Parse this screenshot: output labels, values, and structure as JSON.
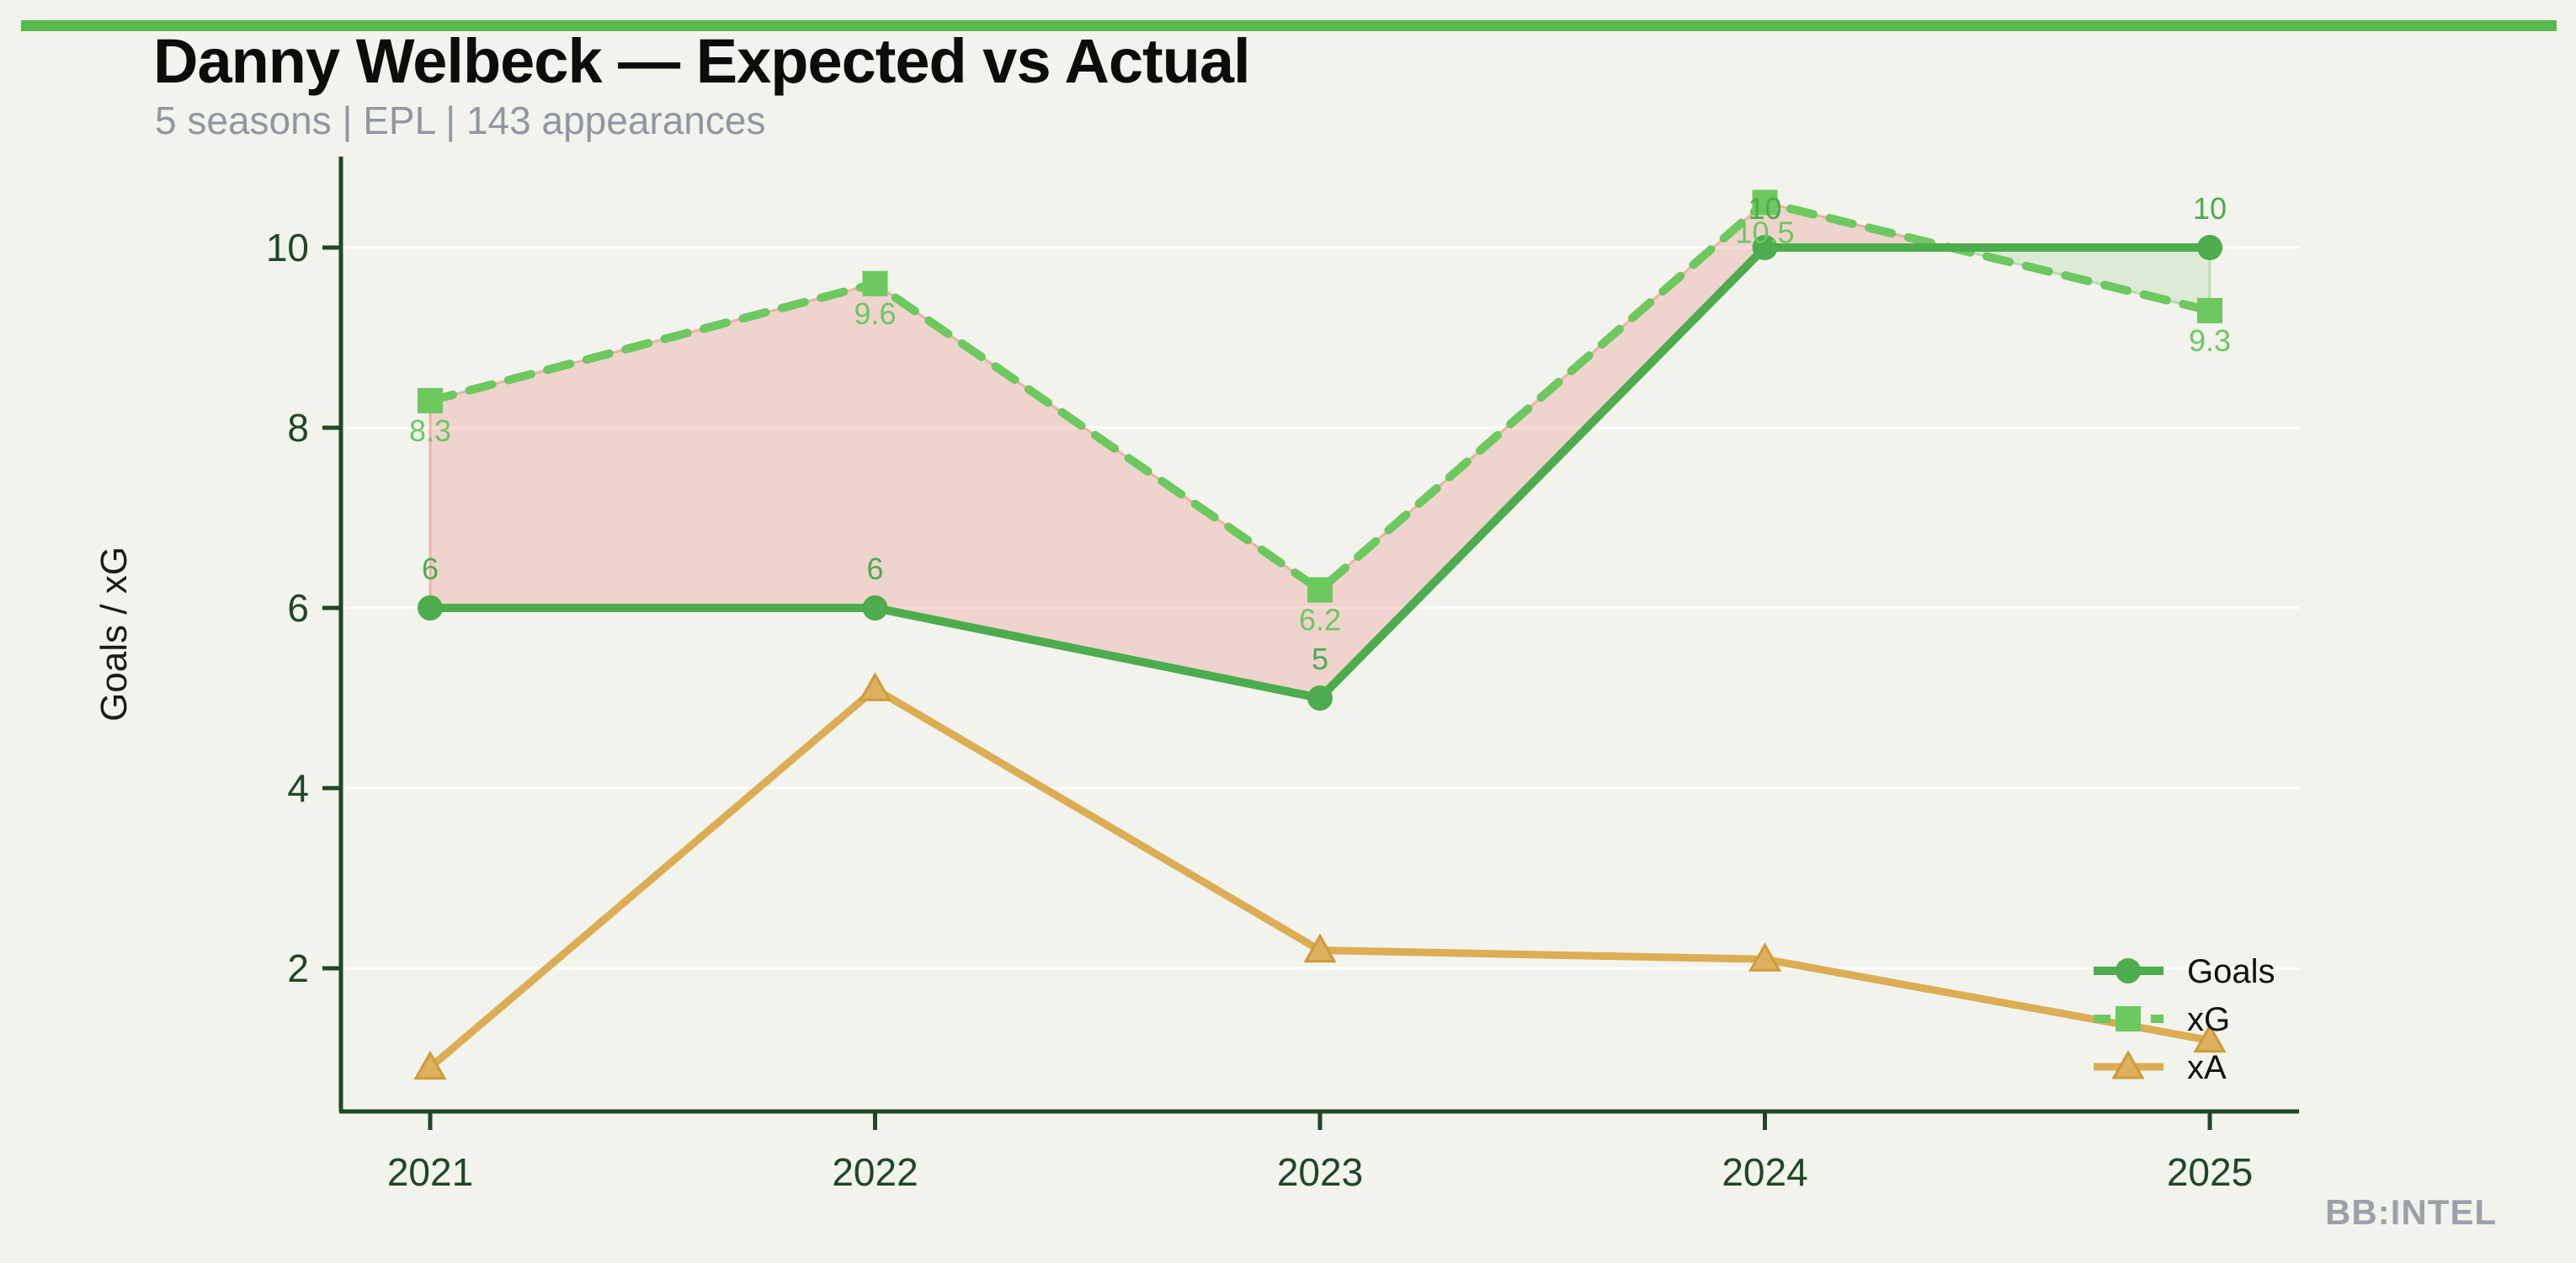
{
  "page": {
    "title": "Danny Welbeck — Expected vs Actual",
    "subtitle": "5 seasons | EPL | 143 appearances",
    "watermark": "BB:INTEL",
    "background_color": "#f2f3ec",
    "accent_bar_color": "#57b94d",
    "title_color": "#0c0c0c",
    "subtitle_color": "#8f97a4",
    "watermark_color": "#9aa1ab"
  },
  "chart_data": {
    "type": "line",
    "title": "Danny Welbeck — Expected vs Actual",
    "subtitle": "5 seasons | EPL | 143 appearances",
    "categories": [
      "2021",
      "2022",
      "2023",
      "2024",
      "2025"
    ],
    "series": [
      {
        "name": "Goals",
        "values": [
          6,
          6,
          5,
          10,
          10
        ],
        "labels": [
          "6",
          "6",
          "5",
          "10",
          "10"
        ],
        "label_position": "above",
        "color": "#4cac4e",
        "line_style": "solid",
        "marker": "circle"
      },
      {
        "name": "xG",
        "values": [
          8.3,
          9.6,
          6.2,
          10.5,
          9.3
        ],
        "labels": [
          "8.3",
          "9.6",
          "6.2",
          "10.5",
          "9.3"
        ],
        "label_position": "below",
        "color": "#6cc85f",
        "line_style": "dashed",
        "marker": "square"
      },
      {
        "name": "xA",
        "values": [
          0.9,
          5.1,
          2.2,
          2.1,
          1.2
        ],
        "labels": [],
        "label_position": "none",
        "color": "#dcad55",
        "marker_fill": "#dcb05e",
        "marker_edge": "#cf9b38",
        "line_style": "solid",
        "marker": "triangle"
      }
    ],
    "fill_between": {
      "upper_series": "xG",
      "lower_series": "Goals",
      "above_color": "rgba(233,125,115,0.26)",
      "above_edge": "rgba(238,150,140,0.65)",
      "below_color": "rgba(110,185,95,0.16)",
      "below_edge": "rgba(150,205,140,0.55)"
    },
    "ylabel": "Goals / xG",
    "xlabel": "",
    "yticks": [
      2,
      4,
      6,
      8,
      10
    ],
    "ylim": [
      0.4,
      11.0
    ],
    "grid": true,
    "grid_color": "rgba(255,255,255,0.9)",
    "axis_color": "#1d4824",
    "tick_label_color": "#1d4824",
    "ylabel_color": "#1a1a1a",
    "legend_position": "lower right",
    "legend_entries": [
      "Goals",
      "xG",
      "xA"
    ],
    "legend_text_color": "#111111"
  }
}
